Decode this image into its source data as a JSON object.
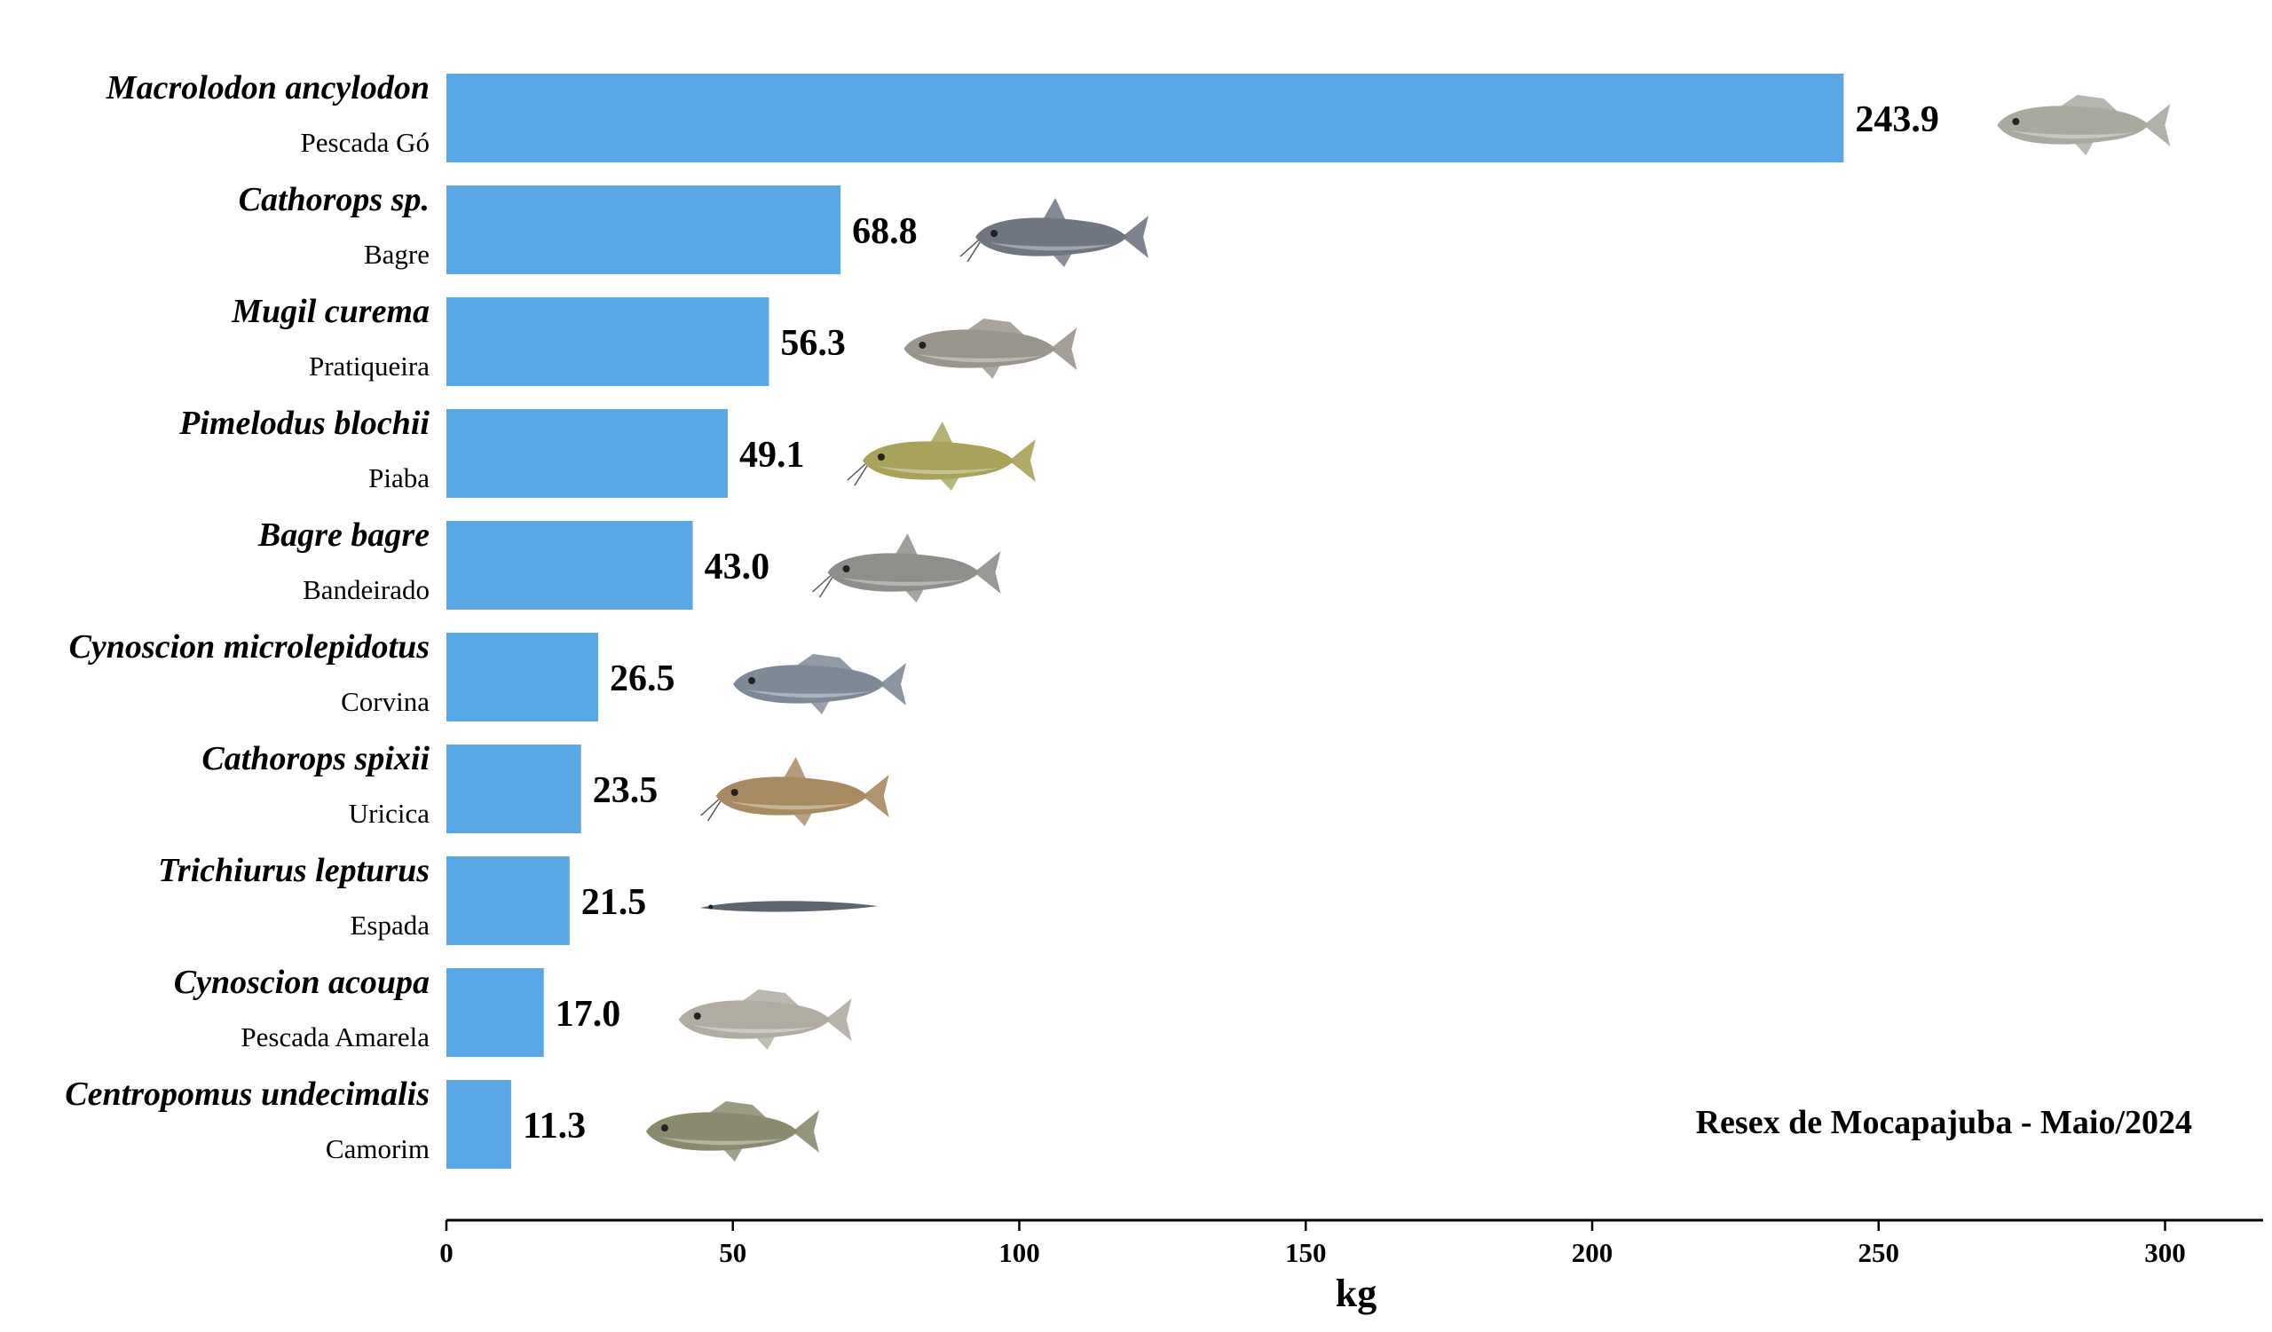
{
  "chart_data": {
    "type": "bar",
    "orientation": "horizontal",
    "categories": [
      {
        "scientific": "Macrolodon ancylodon",
        "common": "Pescada Gó",
        "icon": "fish-icon"
      },
      {
        "scientific": "Cathorops sp.",
        "common": "Bagre",
        "icon": "catfish-icon"
      },
      {
        "scientific": "Mugil curema",
        "common": "Pratiqueira",
        "icon": "fish-icon"
      },
      {
        "scientific": "Pimelodus blochii",
        "common": "Piaba",
        "icon": "catfish-icon"
      },
      {
        "scientific": "Bagre bagre",
        "common": "Bandeirado",
        "icon": "catfish-icon"
      },
      {
        "scientific": "Cynoscion microlepidotus",
        "common": "Corvina",
        "icon": "fish-icon"
      },
      {
        "scientific": "Cathorops spixii",
        "common": "Uricica",
        "icon": "catfish-icon"
      },
      {
        "scientific": "Trichiurus lepturus",
        "common": "Espada",
        "icon": "eel-icon"
      },
      {
        "scientific": "Cynoscion acoupa",
        "common": "Pescada Amarela",
        "icon": "fish-icon"
      },
      {
        "scientific": "Centropomus undecimalis",
        "common": "Camorim",
        "icon": "fish-icon"
      }
    ],
    "values": [
      243.9,
      68.8,
      56.3,
      49.1,
      43.0,
      26.5,
      23.5,
      21.5,
      17.0,
      11.3
    ],
    "value_labels": [
      "243.9",
      "68.8",
      "56.3",
      "49.1",
      "43.0",
      "26.5",
      "23.5",
      "21.5",
      "17.0",
      "11.3"
    ],
    "xlabel": "kg",
    "xlim": [
      0,
      320
    ],
    "xticks": [
      0,
      50,
      100,
      150,
      200,
      250,
      300
    ],
    "annotation": "Resex de Mocapajuba - Maio/2024",
    "grid": false,
    "legend": "none",
    "colors": {
      "bar": "#5aa7e6",
      "fish_body": [
        "#a9a9a0",
        "#6f7682",
        "#9a958c",
        "#a8a25a",
        "#8e8f8a",
        "#7d8996",
        "#a88a62",
        "#5d6670",
        "#b0aca2",
        "#8a8a6e"
      ]
    }
  }
}
